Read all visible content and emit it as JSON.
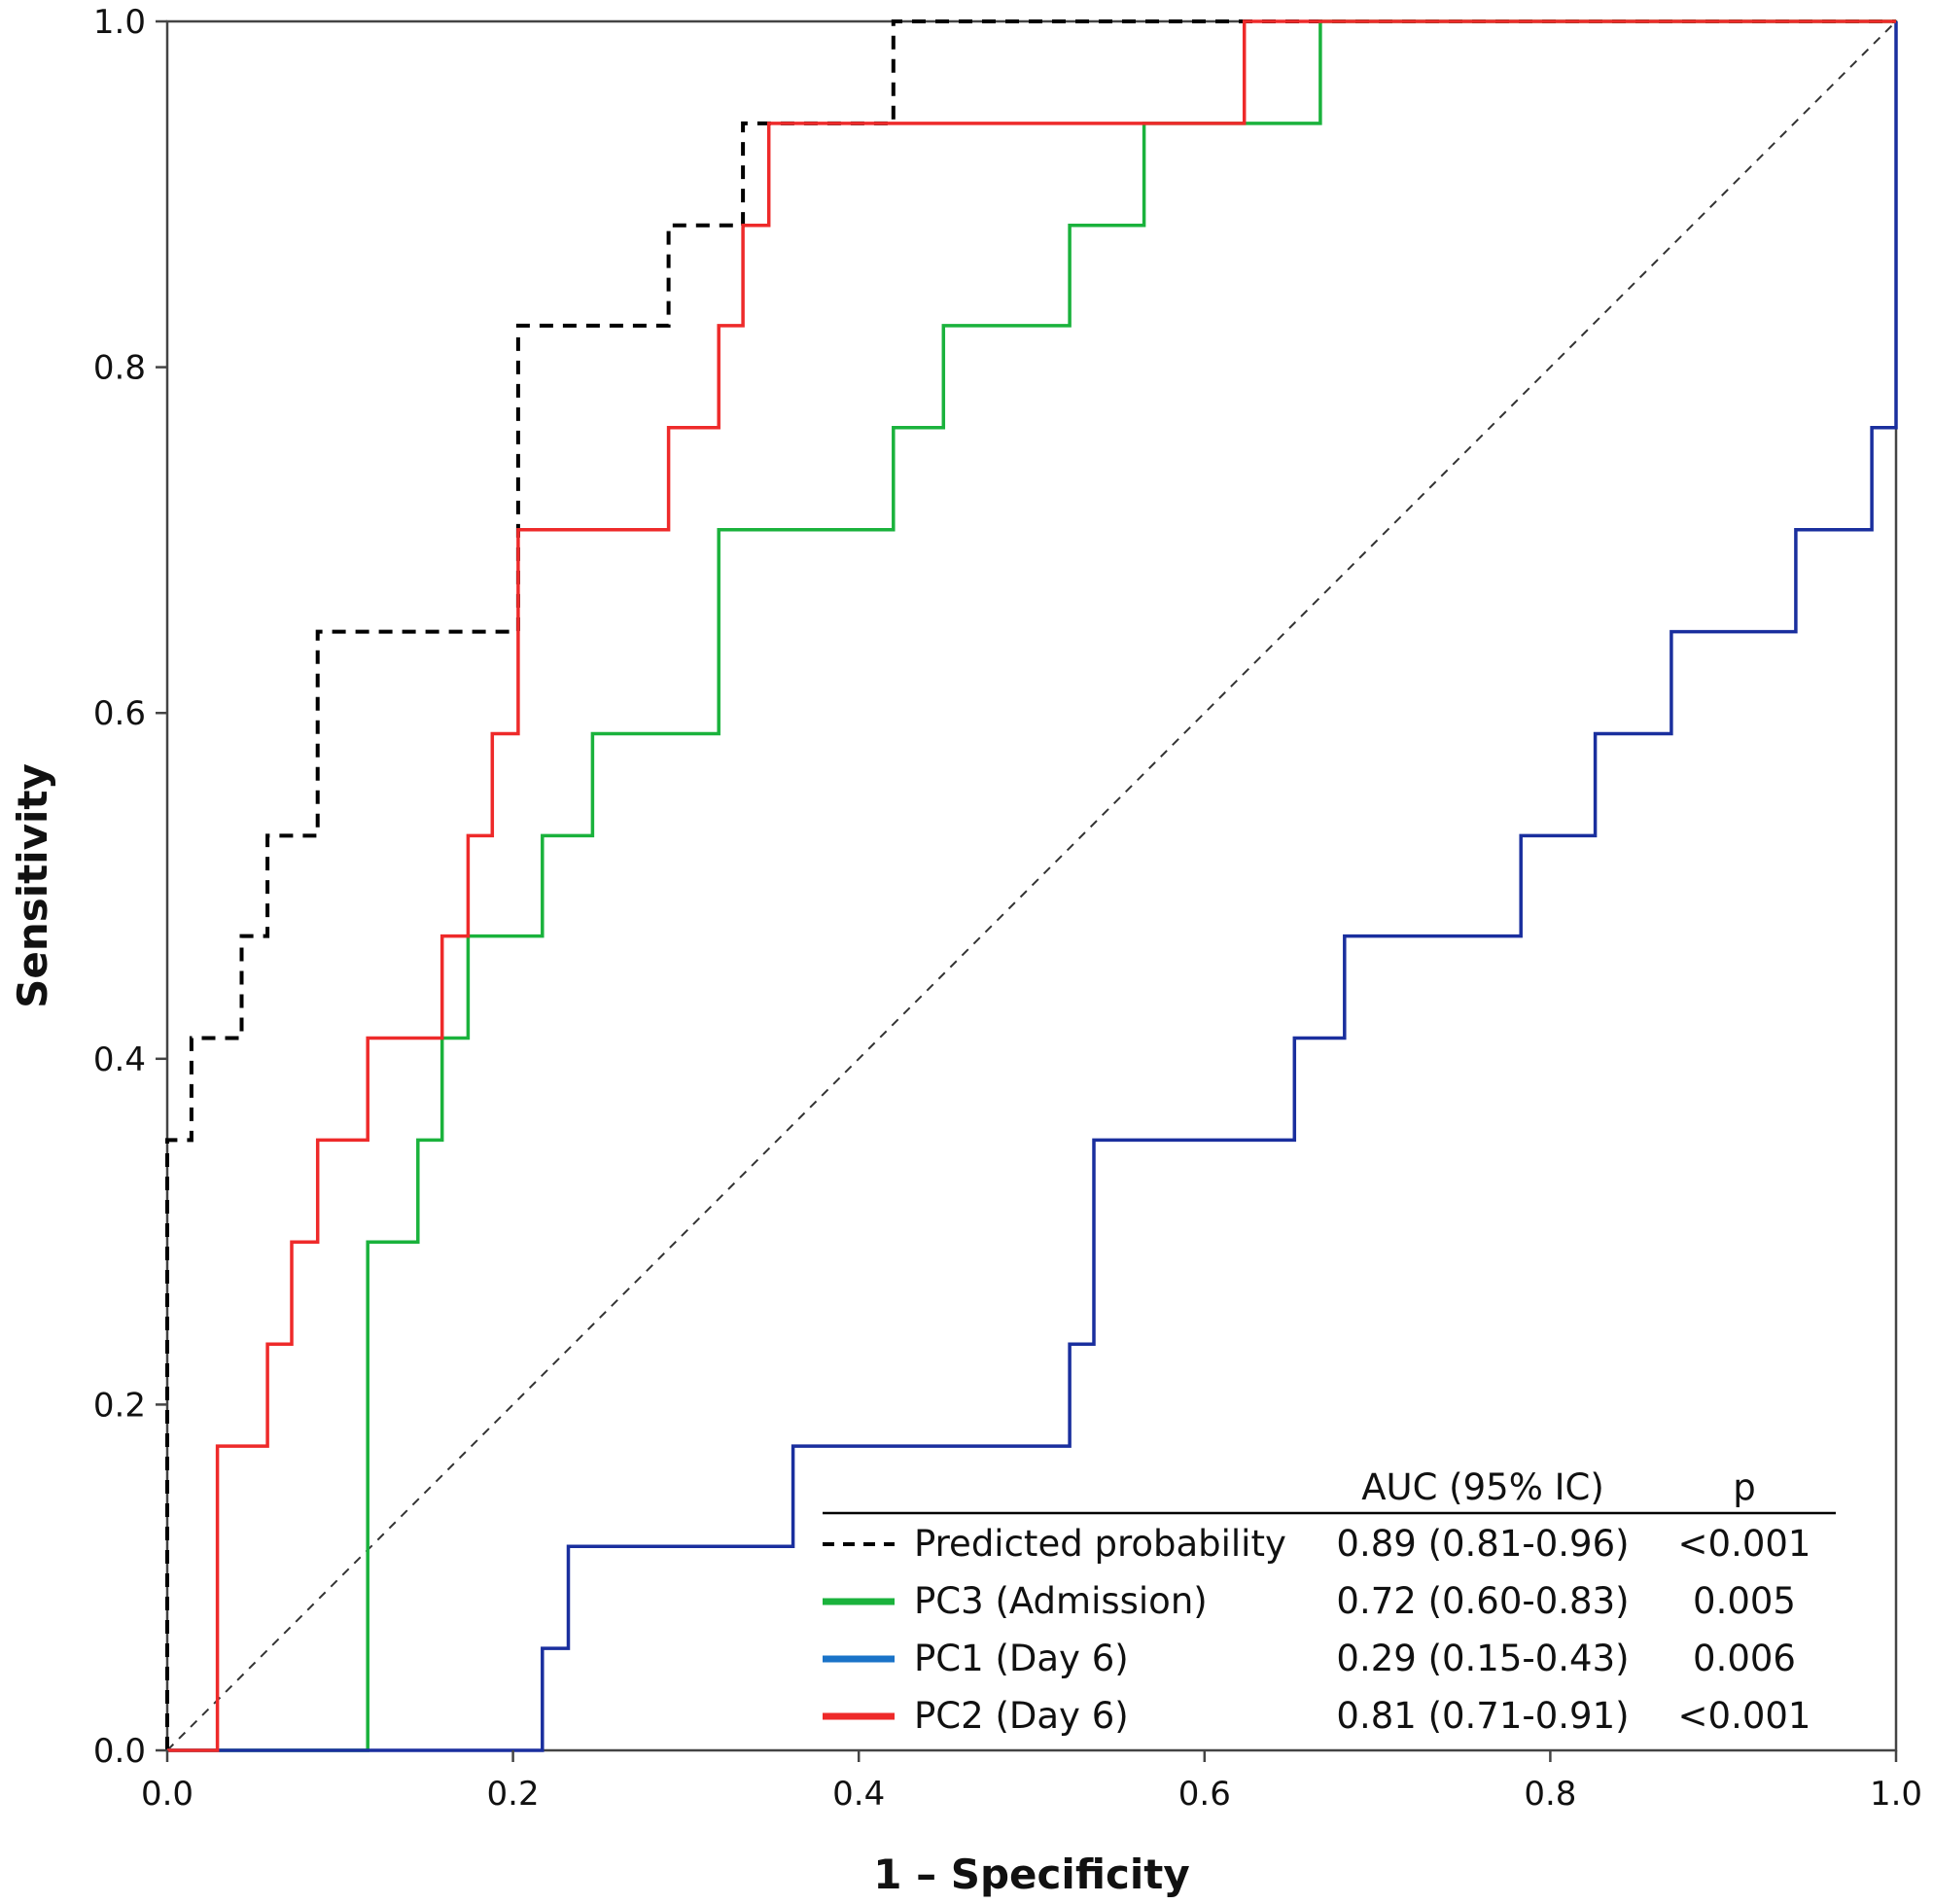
{
  "chart_data": {
    "type": "line",
    "title": "",
    "xlabel": "1 – Specificity",
    "ylabel": "Sensitivity",
    "xlim": [
      0,
      1
    ],
    "ylim": [
      0,
      1
    ],
    "xticks": [
      "0.0",
      "0.2",
      "0.4",
      "0.6",
      "0.8",
      "1.0"
    ],
    "yticks": [
      "0.0",
      "0.2",
      "0.4",
      "0.6",
      "0.8",
      "1.0"
    ],
    "grid": false,
    "legend_position": "bottom-right",
    "legend_header": {
      "auc": "AUC (95% IC)",
      "p": "p"
    },
    "reference_line": {
      "name": "diagonal",
      "x": [
        0,
        1
      ],
      "y": [
        0,
        1
      ],
      "color": "#333333",
      "style": "dashed"
    },
    "series": [
      {
        "name": "Predicted probability",
        "auc": "0.89 (0.81-0.96)",
        "p": "<0.001",
        "color": "#000000",
        "style": "dashed",
        "x": [
          0,
          0,
          0.014,
          0.014,
          0.043,
          0.043,
          0.058,
          0.058,
          0.087,
          0.087,
          0.203,
          0.203,
          0.29,
          0.29,
          0.333,
          0.333,
          0.42,
          0.42,
          1
        ],
        "y": [
          0,
          0.353,
          0.353,
          0.412,
          0.412,
          0.471,
          0.471,
          0.529,
          0.529,
          0.647,
          0.647,
          0.824,
          0.824,
          0.882,
          0.882,
          0.941,
          0.941,
          1,
          1
        ]
      },
      {
        "name": "PC3 (Admission)",
        "auc": "0.72 (0.60-0.83)",
        "p": "0.005",
        "color": "#1ab23c",
        "style": "solid",
        "x": [
          0,
          0.116,
          0.116,
          0.145,
          0.145,
          0.159,
          0.159,
          0.174,
          0.174,
          0.217,
          0.217,
          0.246,
          0.246,
          0.319,
          0.319,
          0.42,
          0.42,
          0.449,
          0.449,
          0.522,
          0.522,
          0.565,
          0.565,
          0.667,
          0.667,
          1
        ],
        "y": [
          0,
          0,
          0.294,
          0.294,
          0.353,
          0.353,
          0.412,
          0.412,
          0.471,
          0.471,
          0.529,
          0.529,
          0.588,
          0.588,
          0.706,
          0.706,
          0.765,
          0.765,
          0.824,
          0.824,
          0.882,
          0.882,
          0.941,
          0.941,
          1,
          1
        ]
      },
      {
        "name": "PC1 (Day 6)",
        "auc": "0.29 (0.15-0.43)",
        "p": "0.006",
        "color": "#1a2f9e",
        "legend_color": "#1a73c8",
        "style": "solid",
        "x": [
          0,
          0.217,
          0.217,
          0.232,
          0.232,
          0.362,
          0.362,
          0.522,
          0.522,
          0.536,
          0.536,
          0.652,
          0.652,
          0.681,
          0.681,
          0.783,
          0.783,
          0.826,
          0.826,
          0.87,
          0.87,
          0.942,
          0.942,
          0.986,
          0.986,
          1,
          1
        ],
        "y": [
          0,
          0,
          0.059,
          0.059,
          0.118,
          0.118,
          0.176,
          0.176,
          0.235,
          0.235,
          0.353,
          0.353,
          0.412,
          0.412,
          0.471,
          0.471,
          0.529,
          0.529,
          0.588,
          0.588,
          0.647,
          0.647,
          0.706,
          0.706,
          0.765,
          0.765,
          1
        ]
      },
      {
        "name": "PC2 (Day 6)",
        "auc": "0.81 (0.71-0.91)",
        "p": "<0.001",
        "color": "#ee2a2a",
        "style": "solid",
        "x": [
          0,
          0.029,
          0.029,
          0.058,
          0.058,
          0.072,
          0.072,
          0.087,
          0.087,
          0.116,
          0.116,
          0.159,
          0.159,
          0.174,
          0.174,
          0.188,
          0.188,
          0.203,
          0.203,
          0.29,
          0.29,
          0.319,
          0.319,
          0.333,
          0.333,
          0.348,
          0.348,
          0.623,
          0.623,
          1
        ],
        "y": [
          0,
          0,
          0.176,
          0.176,
          0.235,
          0.235,
          0.294,
          0.294,
          0.353,
          0.353,
          0.412,
          0.412,
          0.471,
          0.471,
          0.529,
          0.529,
          0.588,
          0.588,
          0.706,
          0.706,
          0.765,
          0.765,
          0.824,
          0.824,
          0.882,
          0.882,
          0.941,
          0.941,
          1,
          1
        ]
      }
    ]
  }
}
